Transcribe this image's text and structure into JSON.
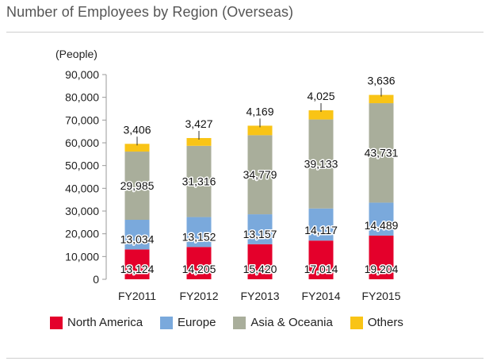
{
  "chart_data": {
    "type": "bar",
    "stacked": true,
    "title": "Number of Employees by Region (Overseas)",
    "unit_label": "(People)",
    "categories": [
      "FY2011",
      "FY2012",
      "FY2013",
      "FY2014",
      "FY2015"
    ],
    "ylim": [
      0,
      90000
    ],
    "yticks": [
      0,
      10000,
      20000,
      30000,
      40000,
      50000,
      60000,
      70000,
      80000,
      90000
    ],
    "ytick_labels": [
      "0",
      "10,000",
      "20,000",
      "30,000",
      "40,000",
      "50,000",
      "60,000",
      "70,000",
      "80,000",
      "90,000"
    ],
    "grid": false,
    "legend_position": "bottom",
    "series": [
      {
        "name": "North America",
        "color": "#e4002b",
        "values": [
          13124,
          14205,
          15420,
          17014,
          19204
        ],
        "labels": [
          "13,124",
          "14,205",
          "15,420",
          "17,014",
          "19,204"
        ]
      },
      {
        "name": "Europe",
        "color": "#7aa9dc",
        "values": [
          13034,
          13152,
          13157,
          14117,
          14489
        ],
        "labels": [
          "13,034",
          "13,152",
          "13,157",
          "14,117",
          "14,489"
        ]
      },
      {
        "name": "Asia & Oceania",
        "color": "#a9ae9b",
        "values": [
          29985,
          31316,
          34779,
          39133,
          43731
        ],
        "labels": [
          "29,985",
          "31,316",
          "34,779",
          "39,133",
          "43,731"
        ]
      },
      {
        "name": "Others",
        "color": "#f9c416",
        "values": [
          3406,
          3427,
          4169,
          4025,
          3636
        ],
        "labels": [
          "3,406",
          "3,427",
          "4,169",
          "4,025",
          "3,636"
        ]
      }
    ]
  }
}
